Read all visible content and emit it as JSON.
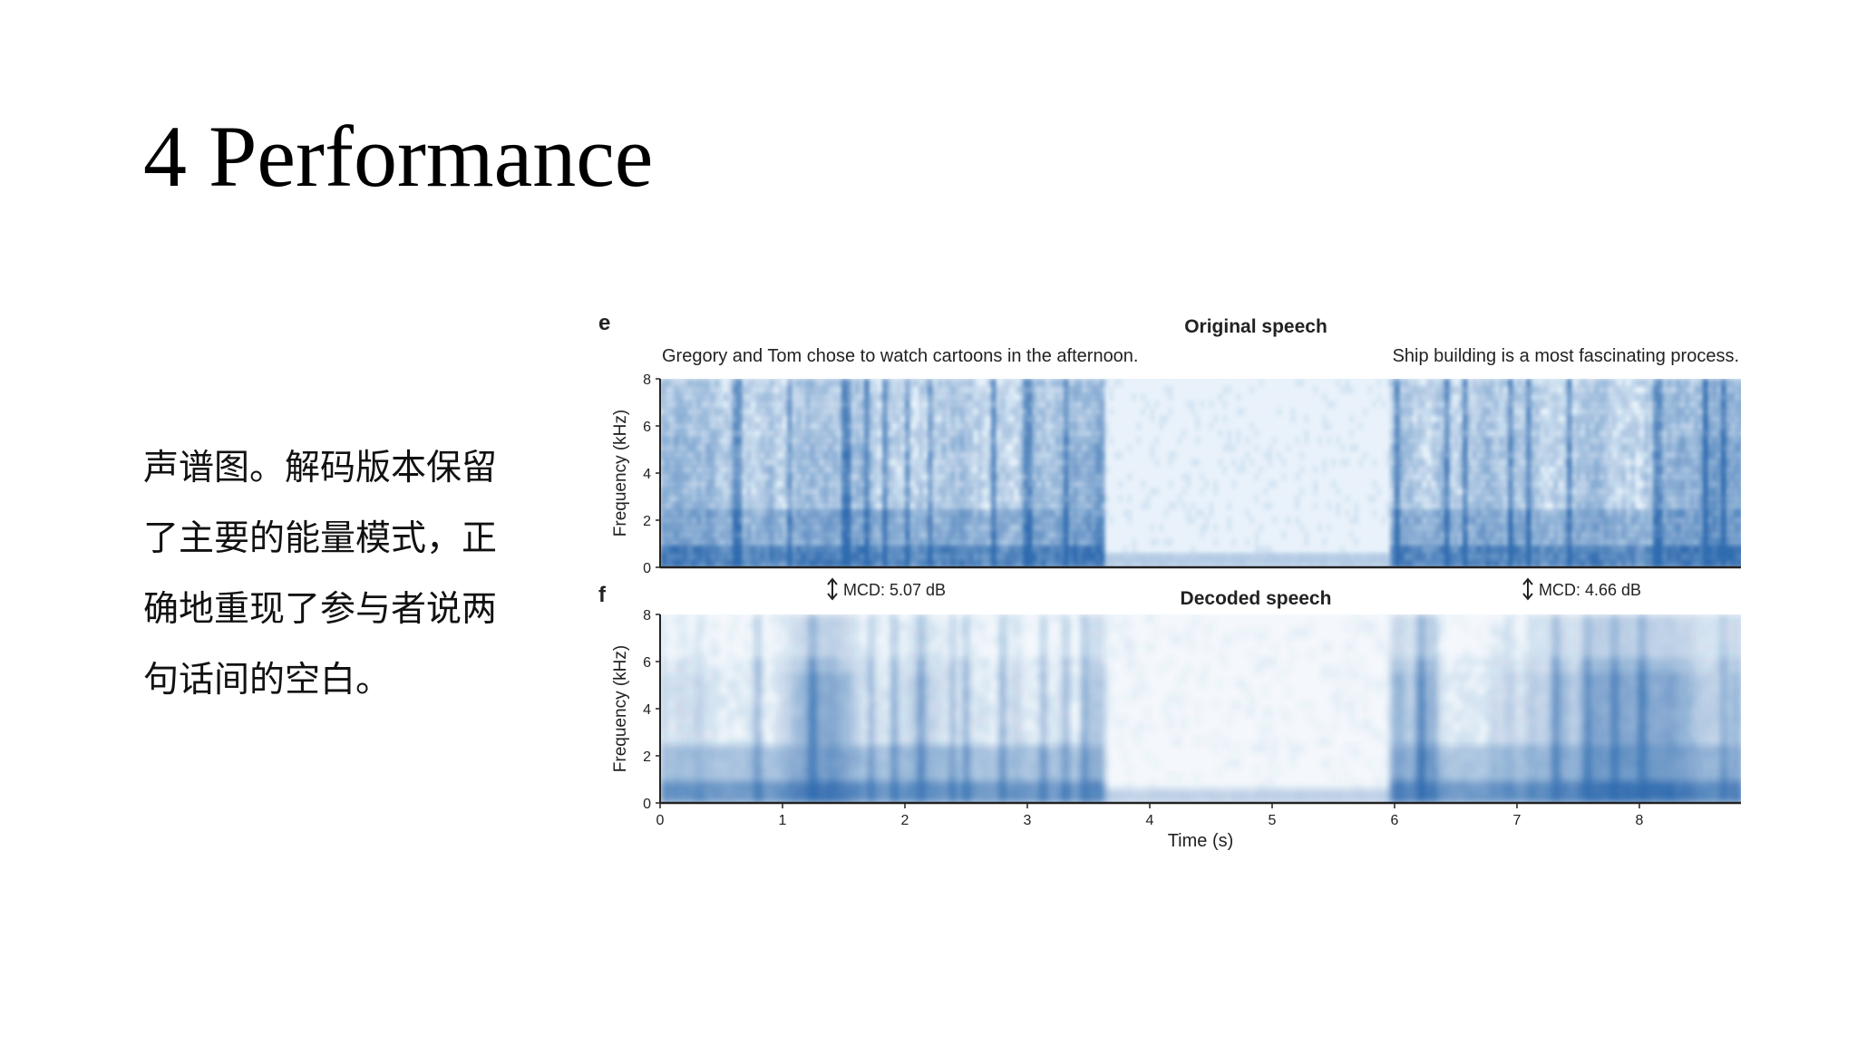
{
  "slide": {
    "title": "4 Performance",
    "description_lines": [
      "声谱图。解码版本保留",
      "了主要的能量模式，正",
      "确地重现了参与者说两",
      "句话间的空白。"
    ]
  },
  "figure": {
    "panel_e": {
      "label": "e",
      "title": "Original speech",
      "sentence_1": "Gregory and Tom chose to watch cartoons in the afternoon.",
      "sentence_2": "Ship building is a most fascinating process."
    },
    "panel_f": {
      "label": "f",
      "title": "Decoded speech",
      "mcd_1": "MCD: 5.07 dB",
      "mcd_2": "MCD: 4.66 dB"
    },
    "ylabel": "Frequency (kHz)",
    "xlabel": "Time (s)",
    "y_ticks": [
      "0",
      "2",
      "4",
      "6",
      "8"
    ],
    "x_ticks": [
      "0",
      "1",
      "2",
      "3",
      "4",
      "5",
      "6",
      "7",
      "8"
    ],
    "colors": {
      "spectrogram_dark": "#1f5fa8",
      "spectrogram_light": "#e9f2fa",
      "axis": "#222222"
    }
  }
}
